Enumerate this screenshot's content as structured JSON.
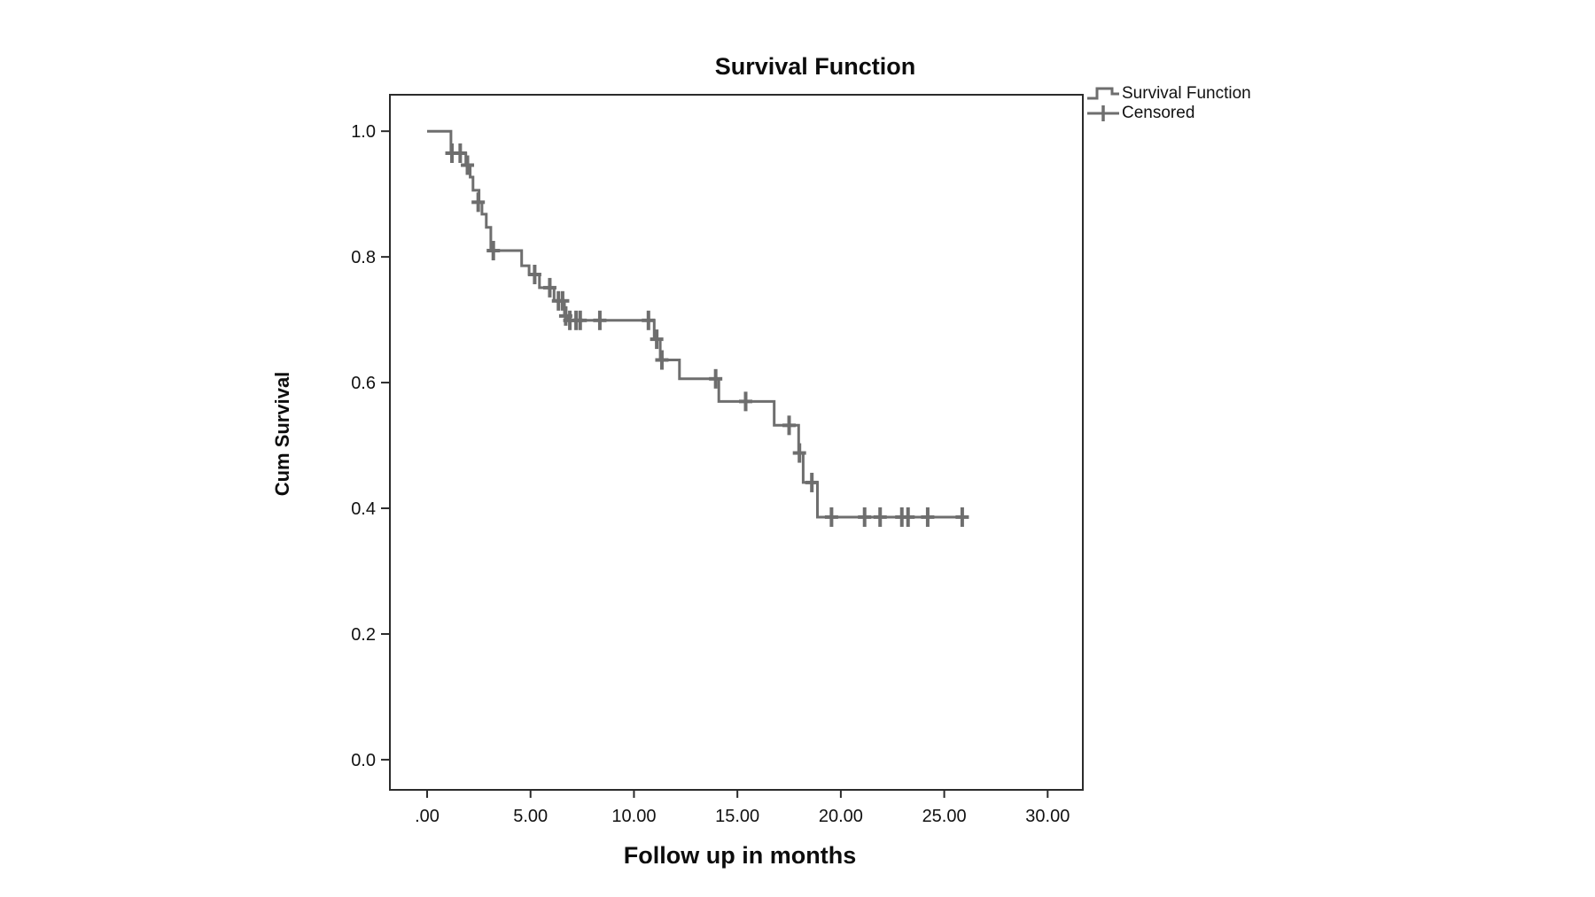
{
  "chart_data": {
    "type": "line",
    "subtype": "kaplan-meier-step",
    "title": "Survival Function",
    "xlabel": "Follow up in months",
    "ylabel": "Cum Survival",
    "xlim": [
      -1.8,
      31.7
    ],
    "ylim": [
      -0.048,
      1.058
    ],
    "grid": false,
    "xticks": {
      "values": [
        0,
        5,
        10,
        15,
        20,
        25,
        30
      ],
      "labels": [
        ".00",
        "5.00",
        "10.00",
        "15.00",
        "20.00",
        "25.00",
        "30.00"
      ]
    },
    "yticks": {
      "values": [
        0.0,
        0.2,
        0.4,
        0.6,
        0.8,
        1.0
      ],
      "labels": [
        "0.0",
        "0.2",
        "0.4",
        "0.6",
        "0.8",
        "1.0"
      ]
    },
    "legend": {
      "position": "top-right-outside",
      "items": [
        {
          "label": "Survival Function",
          "marker": "step-line"
        },
        {
          "label": "Censored",
          "marker": "plus"
        }
      ]
    },
    "series": [
      {
        "name": "Survival Function",
        "type": "step-after",
        "points": [
          [
            0,
            1.0
          ],
          [
            1.15,
            0.965
          ],
          [
            1.87,
            0.946
          ],
          [
            2.08,
            0.927
          ],
          [
            2.22,
            0.906
          ],
          [
            2.51,
            0.887
          ],
          [
            2.65,
            0.868
          ],
          [
            2.86,
            0.847
          ],
          [
            3.08,
            0.81
          ],
          [
            4.57,
            0.786
          ],
          [
            4.93,
            0.772
          ],
          [
            5.43,
            0.751
          ],
          [
            6.14,
            0.73
          ],
          [
            6.64,
            0.706
          ],
          [
            6.78,
            0.699
          ],
          [
            10.98,
            0.669
          ],
          [
            11.27,
            0.636
          ],
          [
            12.2,
            0.606
          ],
          [
            14.1,
            0.57
          ],
          [
            16.78,
            0.532
          ],
          [
            17.96,
            0.488
          ],
          [
            18.18,
            0.441
          ],
          [
            18.87,
            0.386
          ]
        ],
        "end_x": 25.9
      }
    ],
    "censored": [
      [
        1.2,
        0.965
      ],
      [
        1.6,
        0.965
      ],
      [
        1.95,
        0.946
      ],
      [
        2.47,
        0.887
      ],
      [
        3.2,
        0.81
      ],
      [
        5.2,
        0.772
      ],
      [
        5.93,
        0.751
      ],
      [
        6.35,
        0.73
      ],
      [
        6.55,
        0.73
      ],
      [
        6.7,
        0.706
      ],
      [
        6.9,
        0.699
      ],
      [
        7.2,
        0.699
      ],
      [
        7.4,
        0.699
      ],
      [
        8.35,
        0.699
      ],
      [
        10.7,
        0.699
      ],
      [
        11.1,
        0.669
      ],
      [
        11.35,
        0.636
      ],
      [
        13.95,
        0.606
      ],
      [
        15.4,
        0.57
      ],
      [
        17.5,
        0.532
      ],
      [
        18.0,
        0.488
      ],
      [
        18.6,
        0.441
      ],
      [
        19.55,
        0.386
      ],
      [
        21.15,
        0.386
      ],
      [
        21.9,
        0.386
      ],
      [
        22.95,
        0.386
      ],
      [
        23.25,
        0.386
      ],
      [
        24.2,
        0.386
      ],
      [
        25.87,
        0.386
      ]
    ],
    "colors": {
      "curve": "#6e6e6e",
      "axis": "#2b2b2b",
      "text": "#111111",
      "background": "#ffffff"
    }
  }
}
